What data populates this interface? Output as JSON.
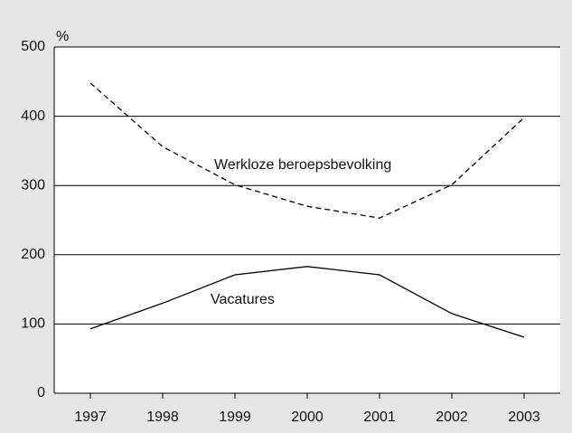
{
  "chart_data": {
    "type": "line",
    "unit_label": "%",
    "categories": [
      "1997",
      "1998",
      "1999",
      "2000",
      "2001",
      "2002",
      "2003"
    ],
    "series": [
      {
        "name": "Werkloze beroepsbevolking",
        "color": "#000000",
        "style": "dashed",
        "values": [
          448,
          356,
          301,
          270,
          253,
          301,
          398
        ]
      },
      {
        "name": "Vacatures",
        "color": "#000000",
        "style": "solid",
        "values": [
          93,
          130,
          171,
          183,
          171,
          115,
          81
        ]
      }
    ],
    "ylim": [
      0,
      500
    ],
    "yticks": [
      0,
      100,
      200,
      300,
      400,
      500
    ],
    "grid": true
  }
}
